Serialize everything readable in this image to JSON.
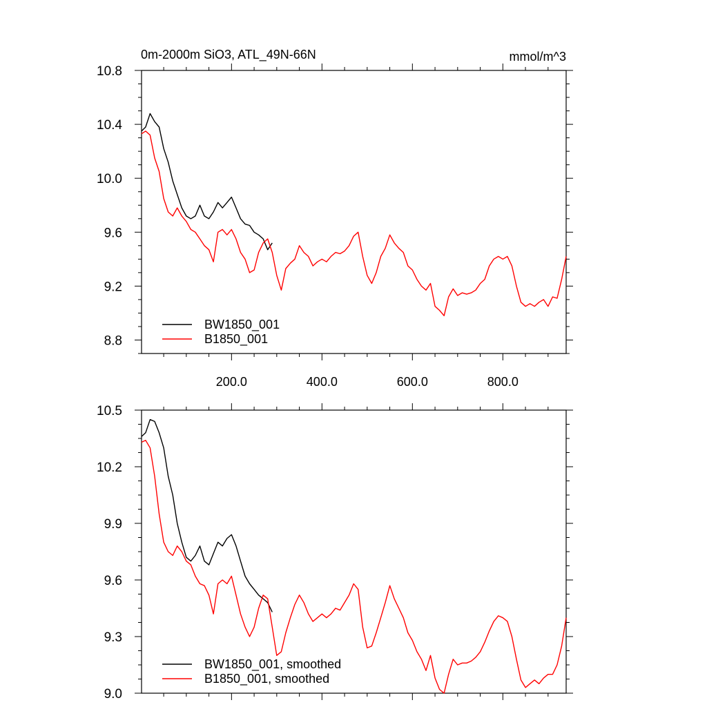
{
  "chart_data": [
    {
      "type": "line",
      "title": "0m-2000m SiO3, ATL_49N-66N",
      "units": "mmol/m^3",
      "xlim": [
        1,
        940
      ],
      "ylim": [
        8.7,
        10.8
      ],
      "xticks": [
        200.0,
        400.0,
        600.0,
        800.0
      ],
      "xtick_labels": [
        "200.0",
        "400.0",
        "600.0",
        "800.0"
      ],
      "yticks": [
        8.8,
        9.2,
        9.6,
        10.0,
        10.4,
        10.8
      ],
      "ytick_labels": [
        "8.8",
        "9.2",
        "9.6",
        "10.0",
        "10.4",
        "10.8"
      ],
      "grid": false,
      "legend_position": "bottom-left",
      "series": [
        {
          "name": "BW1850_001",
          "color": "#000000",
          "x": [
            1,
            10,
            20,
            30,
            40,
            50,
            60,
            70,
            80,
            90,
            100,
            110,
            120,
            130,
            140,
            150,
            160,
            170,
            180,
            190,
            200,
            210,
            220,
            230,
            240,
            250,
            260,
            270,
            280,
            290
          ],
          "y": [
            10.35,
            10.38,
            10.48,
            10.42,
            10.38,
            10.22,
            10.12,
            9.98,
            9.88,
            9.78,
            9.72,
            9.7,
            9.72,
            9.8,
            9.72,
            9.7,
            9.75,
            9.82,
            9.78,
            9.82,
            9.86,
            9.78,
            9.7,
            9.66,
            9.65,
            9.6,
            9.58,
            9.55,
            9.47,
            9.52
          ]
        },
        {
          "name": "B1850_001",
          "color": "#ff0000",
          "x": [
            1,
            10,
            20,
            30,
            40,
            50,
            60,
            70,
            80,
            90,
            100,
            110,
            120,
            130,
            140,
            150,
            160,
            170,
            180,
            190,
            200,
            210,
            220,
            230,
            240,
            250,
            260,
            270,
            280,
            290,
            300,
            310,
            320,
            330,
            340,
            350,
            360,
            370,
            380,
            390,
            400,
            410,
            420,
            430,
            440,
            450,
            460,
            470,
            480,
            490,
            500,
            510,
            520,
            530,
            540,
            550,
            560,
            570,
            580,
            590,
            600,
            610,
            620,
            630,
            640,
            650,
            660,
            670,
            680,
            690,
            700,
            710,
            720,
            730,
            740,
            750,
            760,
            770,
            780,
            790,
            800,
            810,
            820,
            830,
            840,
            850,
            860,
            870,
            880,
            890,
            900,
            910,
            920,
            930,
            940
          ],
          "y": [
            10.33,
            10.35,
            10.32,
            10.15,
            10.05,
            9.85,
            9.75,
            9.72,
            9.78,
            9.72,
            9.68,
            9.62,
            9.6,
            9.55,
            9.5,
            9.47,
            9.38,
            9.6,
            9.62,
            9.58,
            9.62,
            9.55,
            9.45,
            9.4,
            9.3,
            9.32,
            9.45,
            9.52,
            9.55,
            9.45,
            9.28,
            9.17,
            9.33,
            9.37,
            9.4,
            9.5,
            9.45,
            9.42,
            9.35,
            9.38,
            9.4,
            9.38,
            9.42,
            9.45,
            9.44,
            9.46,
            9.5,
            9.57,
            9.6,
            9.42,
            9.28,
            9.22,
            9.3,
            9.42,
            9.48,
            9.58,
            9.52,
            9.48,
            9.45,
            9.35,
            9.32,
            9.25,
            9.2,
            9.17,
            9.22,
            9.05,
            9.02,
            8.98,
            9.12,
            9.18,
            9.13,
            9.15,
            9.14,
            9.15,
            9.17,
            9.22,
            9.25,
            9.35,
            9.4,
            9.42,
            9.4,
            9.42,
            9.35,
            9.2,
            9.08,
            9.05,
            9.07,
            9.05,
            9.08,
            9.1,
            9.05,
            9.12,
            9.11,
            9.25,
            9.42
          ]
        }
      ]
    },
    {
      "type": "line",
      "title": "",
      "xlim": [
        1,
        940
      ],
      "ylim": [
        9.0,
        10.5
      ],
      "yticks": [
        9.0,
        9.3,
        9.6,
        9.9,
        10.2,
        10.5
      ],
      "ytick_labels": [
        "9.0",
        "9.3",
        "9.6",
        "9.9",
        "10.2",
        "10.5"
      ],
      "grid": false,
      "legend_position": "bottom-left",
      "series": [
        {
          "name": "BW1850_001, smoothed",
          "color": "#000000",
          "x": [
            1,
            10,
            20,
            30,
            40,
            50,
            60,
            70,
            80,
            90,
            100,
            110,
            120,
            130,
            140,
            150,
            160,
            170,
            180,
            190,
            200,
            210,
            220,
            230,
            240,
            250,
            260,
            270,
            280,
            290
          ],
          "y": [
            10.36,
            10.38,
            10.45,
            10.44,
            10.38,
            10.3,
            10.15,
            10.05,
            9.9,
            9.8,
            9.72,
            9.7,
            9.73,
            9.78,
            9.7,
            9.68,
            9.74,
            9.8,
            9.78,
            9.82,
            9.84,
            9.78,
            9.7,
            9.62,
            9.58,
            9.55,
            9.52,
            9.5,
            9.48,
            9.43
          ]
        },
        {
          "name": "B1850_001, smoothed",
          "color": "#ff0000",
          "x": [
            1,
            10,
            20,
            30,
            40,
            50,
            60,
            70,
            80,
            90,
            100,
            110,
            120,
            130,
            140,
            150,
            160,
            170,
            180,
            190,
            200,
            210,
            220,
            230,
            240,
            250,
            260,
            270,
            280,
            290,
            300,
            310,
            320,
            330,
            340,
            350,
            360,
            370,
            380,
            390,
            400,
            410,
            420,
            430,
            440,
            450,
            460,
            470,
            480,
            490,
            500,
            510,
            520,
            530,
            540,
            550,
            560,
            570,
            580,
            590,
            600,
            610,
            620,
            630,
            640,
            650,
            660,
            670,
            680,
            690,
            700,
            710,
            720,
            730,
            740,
            750,
            760,
            770,
            780,
            790,
            800,
            810,
            820,
            830,
            840,
            850,
            860,
            870,
            880,
            890,
            900,
            910,
            920,
            930,
            940
          ],
          "y": [
            10.33,
            10.34,
            10.3,
            10.15,
            9.95,
            9.8,
            9.75,
            9.73,
            9.78,
            9.75,
            9.7,
            9.68,
            9.62,
            9.58,
            9.57,
            9.52,
            9.42,
            9.58,
            9.6,
            9.58,
            9.62,
            9.52,
            9.42,
            9.35,
            9.3,
            9.35,
            9.45,
            9.52,
            9.5,
            9.35,
            9.2,
            9.22,
            9.32,
            9.4,
            9.47,
            9.52,
            9.48,
            9.42,
            9.38,
            9.4,
            9.42,
            9.4,
            9.42,
            9.45,
            9.44,
            9.48,
            9.52,
            9.58,
            9.55,
            9.35,
            9.24,
            9.25,
            9.32,
            9.4,
            9.48,
            9.57,
            9.5,
            9.45,
            9.4,
            9.32,
            9.28,
            9.22,
            9.18,
            9.12,
            9.2,
            9.08,
            9.02,
            9.0,
            9.1,
            9.18,
            9.15,
            9.16,
            9.16,
            9.17,
            9.19,
            9.22,
            9.27,
            9.33,
            9.38,
            9.41,
            9.4,
            9.38,
            9.3,
            9.18,
            9.07,
            9.03,
            9.05,
            9.07,
            9.05,
            9.08,
            9.1,
            9.1,
            9.15,
            9.25,
            9.4
          ]
        }
      ]
    }
  ]
}
